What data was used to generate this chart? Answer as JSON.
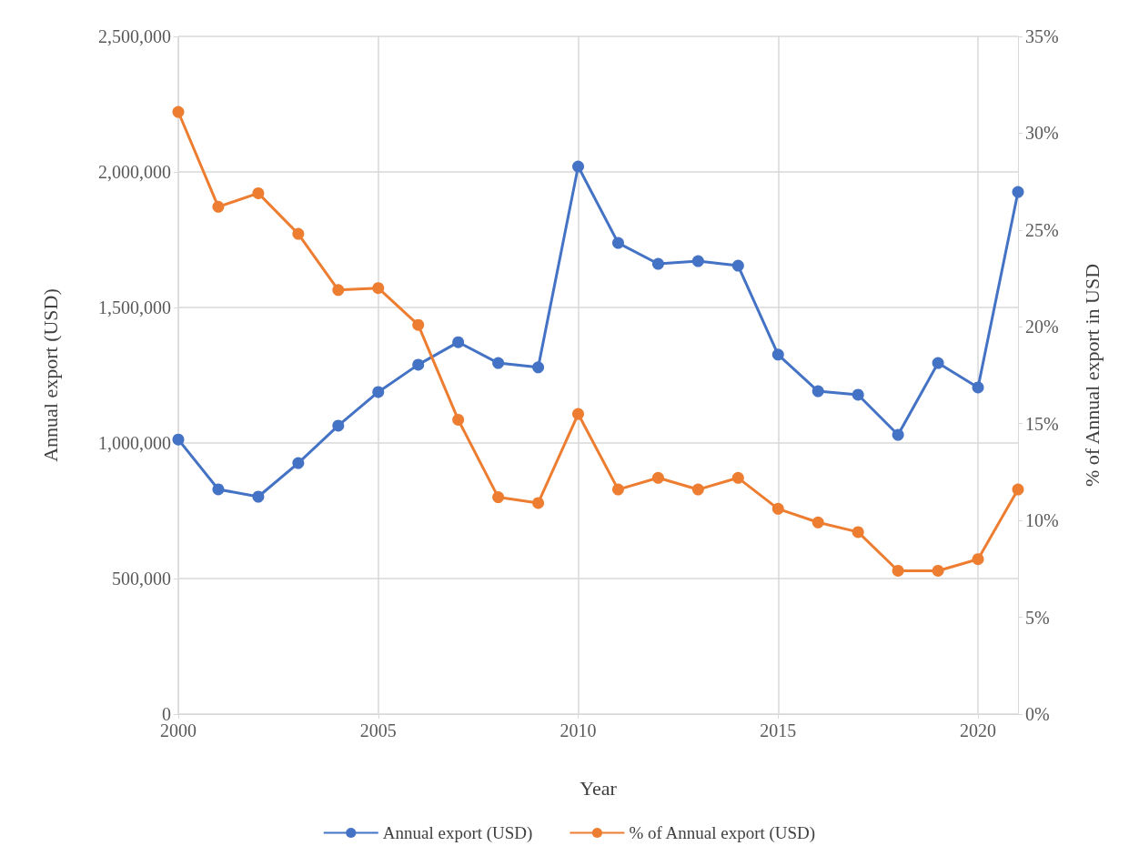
{
  "chart_data": {
    "type": "line",
    "xlabel": "Year",
    "ylabel": "Annual export (USD)",
    "y2label": "% of Annual export in USD",
    "x": [
      2000,
      2001,
      2002,
      2003,
      2004,
      2005,
      2006,
      2007,
      2008,
      2009,
      2010,
      2011,
      2012,
      2013,
      2014,
      2015,
      2016,
      2017,
      2018,
      2019,
      2020,
      2021
    ],
    "series": [
      {
        "name": "Annual export (USD)",
        "color": "#4472c4",
        "values": [
          1013000,
          829000,
          802000,
          926000,
          1064000,
          1188000,
          1289000,
          1372000,
          1295000,
          1279000,
          2020000,
          1738000,
          1661000,
          1671000,
          1654000,
          1326000,
          1191000,
          1178000,
          1030000,
          1295000,
          1205000,
          1926000
        ]
      },
      {
        "name": "% of Annual export (USD)",
        "color": "#ed7d31",
        "axis": "y2",
        "values": [
          31.1,
          26.2,
          26.9,
          24.8,
          21.9,
          22.0,
          20.1,
          15.2,
          11.2,
          10.9,
          15.5,
          11.6,
          12.2,
          11.6,
          12.2,
          10.6,
          9.9,
          9.4,
          7.4,
          7.4,
          8.0,
          11.6
        ]
      }
    ],
    "xlim": [
      2000,
      2021
    ],
    "xticks": [
      2000,
      2005,
      2010,
      2015,
      2020
    ],
    "ylim": [
      0,
      2500000
    ],
    "yticks": [
      0,
      {
        "value": 500000,
        "label": "500,000"
      },
      {
        "value": 1000000,
        "label": "1,000,000"
      },
      {
        "value": 1500000,
        "label": "1,500,000"
      },
      {
        "value": 2000000,
        "label": "2,000,000"
      },
      {
        "value": 2500000,
        "label": "2,500,000"
      }
    ],
    "y2lim": [
      0,
      35
    ],
    "y2ticks": [
      {
        "value": 0,
        "label": "0%"
      },
      {
        "value": 5,
        "label": "5%"
      },
      {
        "value": 10,
        "label": "10%"
      },
      {
        "value": 15,
        "label": "15%"
      },
      {
        "value": 20,
        "label": "20%"
      },
      {
        "value": 25,
        "label": "25%"
      },
      {
        "value": 30,
        "label": "30%"
      },
      {
        "value": 35,
        "label": "35%"
      }
    ],
    "grid": true,
    "legend": "bottom",
    "marker": "circle",
    "line_style": "solid"
  }
}
